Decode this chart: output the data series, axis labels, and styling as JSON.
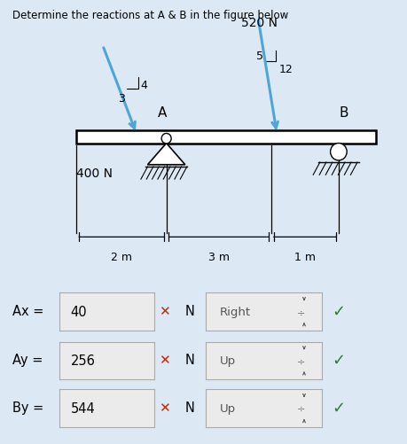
{
  "title": "Determine the reactions at A & B in the figure below",
  "bg_outer": "#dce9f5",
  "bg_panel": "#f2f8fb",
  "bg_white": "#ffffff",
  "arrow_color": "#4da6d4",
  "text_color": "#000000",
  "x_color": "#cc2200",
  "check_color": "#2e7d32",
  "answers": [
    {
      "label": "Ax =",
      "value": "40",
      "unit": "N",
      "direction": "Right"
    },
    {
      "label": "Ay =",
      "value": "256",
      "unit": "N",
      "direction": "Up"
    },
    {
      "label": "By =",
      "value": "544",
      "unit": "N",
      "direction": "Up"
    }
  ]
}
